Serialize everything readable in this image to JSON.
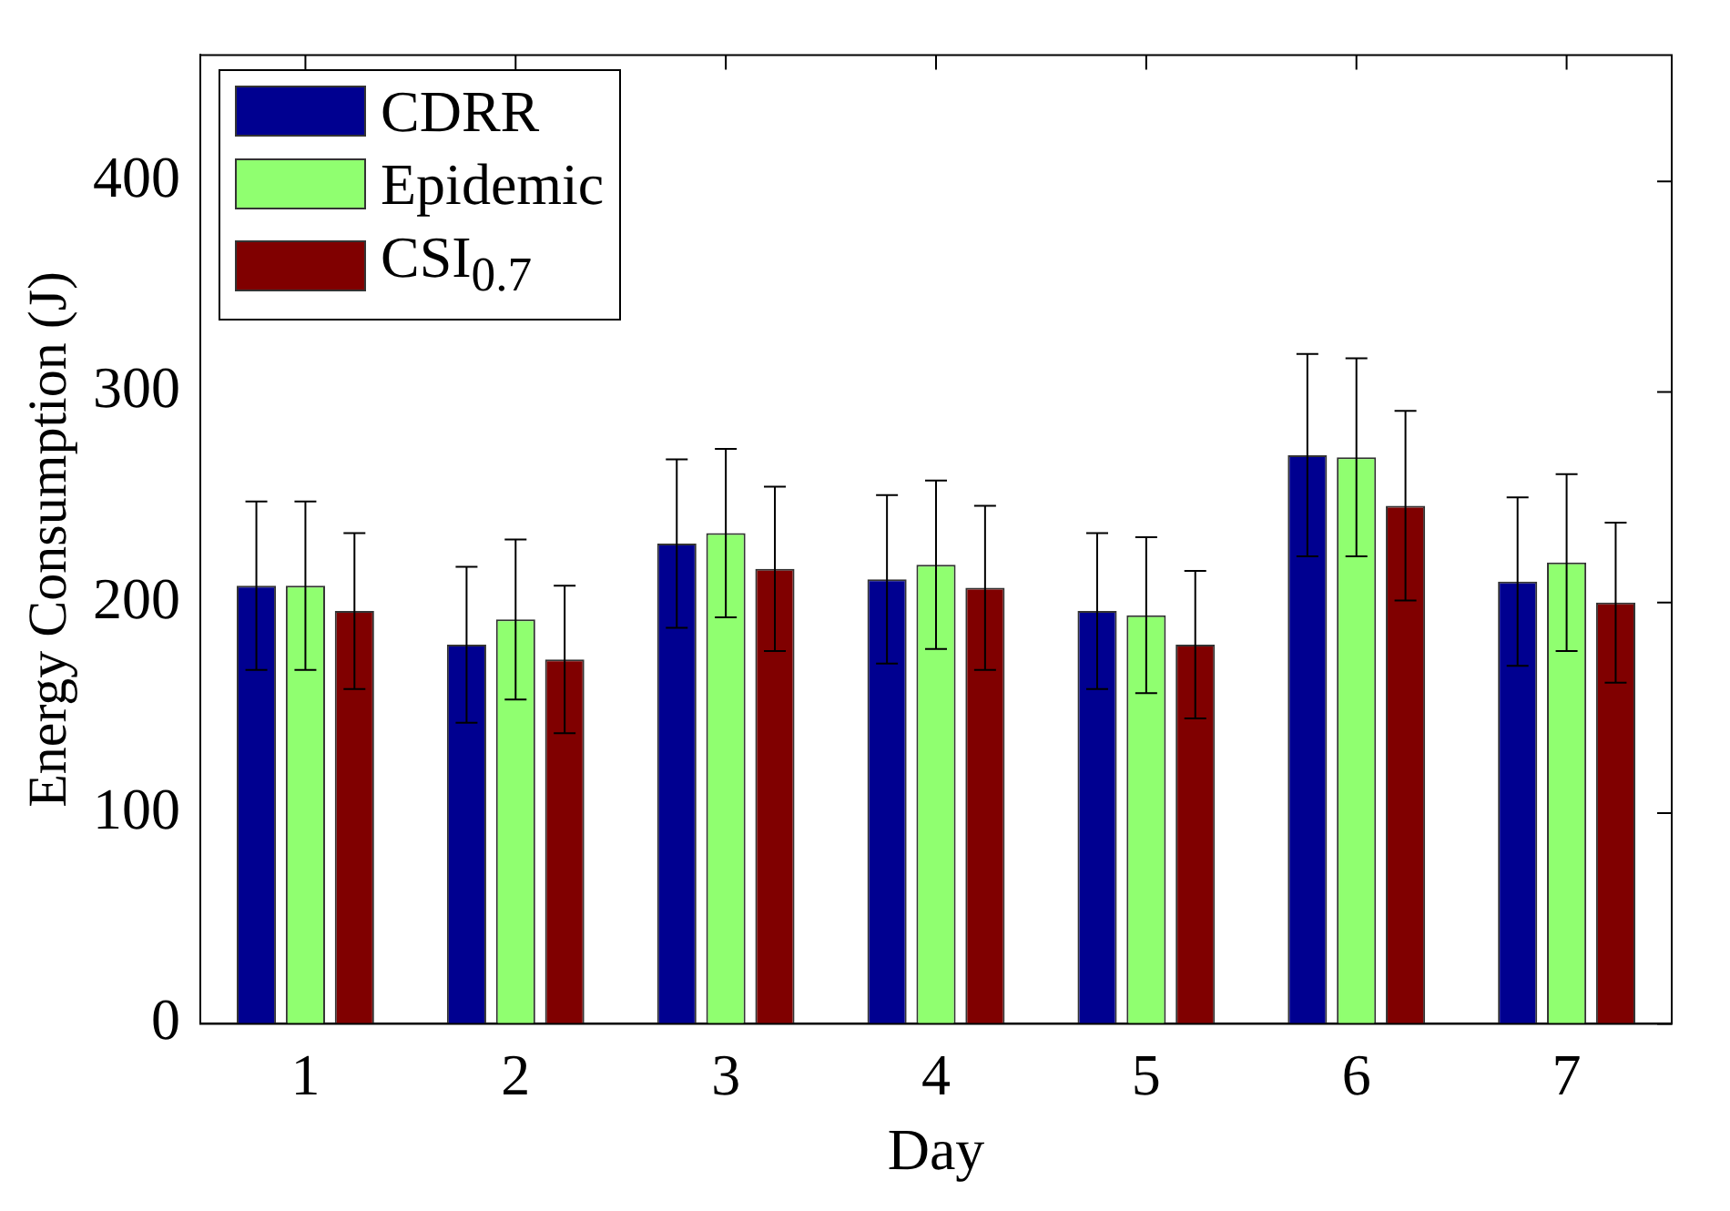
{
  "chart_data": {
    "type": "bar",
    "xlabel": "Day",
    "ylabel": "Energy Consumption (J)",
    "categories": [
      "1",
      "2",
      "3",
      "4",
      "5",
      "6",
      "7"
    ],
    "series": [
      {
        "name": "CDRR",
        "color": "#000090",
        "values": [
          208,
          180,
          228,
          211,
          196,
          270,
          210
        ],
        "errors": [
          40,
          37,
          40,
          40,
          37,
          48,
          40
        ]
      },
      {
        "name": "Epidemic",
        "color": "#90ff70",
        "values": [
          208,
          192,
          233,
          218,
          194,
          269,
          219
        ],
        "errors": [
          40,
          38,
          40,
          40,
          37,
          47,
          42
        ]
      },
      {
        "name": "CSI$_{0.7}$",
        "color": "#800000",
        "values": [
          196,
          173,
          216,
          207,
          180,
          246,
          200
        ],
        "errors": [
          37,
          35,
          39,
          39,
          35,
          45,
          38
        ]
      }
    ],
    "ylim": [
      0,
      460
    ],
    "yticks": [
      0,
      100,
      200,
      300,
      400
    ],
    "grid": false,
    "legend": "top left"
  }
}
